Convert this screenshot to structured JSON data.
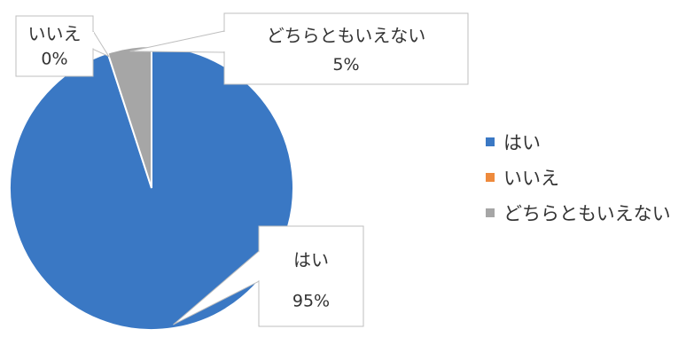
{
  "chart_data": {
    "type": "pie",
    "categories": [
      "はい",
      "いいえ",
      "どちらともいえない"
    ],
    "values": [
      95,
      0,
      5
    ],
    "value_labels": [
      "95%",
      "0%",
      "5%"
    ],
    "colors": [
      "#3a78c4",
      "#ee8a3c",
      "#a6a6a6"
    ],
    "title": "",
    "legend_position": "right",
    "data_label_style": "callout"
  }
}
